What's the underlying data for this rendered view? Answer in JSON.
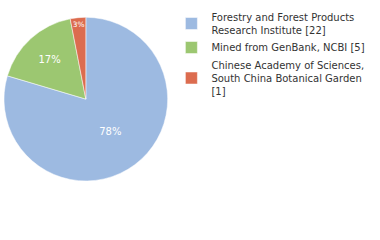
{
  "chart_data": {
    "type": "pie",
    "categories": [
      "Forestry and Forest Products Research Institute [22]",
      "Mined from GenBank, NCBI [5]",
      "Chinese Academy of Sciences, South China Botanical Garden [1]"
    ],
    "values": [
      78,
      17,
      3
    ],
    "value_labels": [
      "78%",
      "17%",
      "3%"
    ],
    "colors": [
      "#9dbae1",
      "#9cc771",
      "#dc6c4f"
    ],
    "data_labels": true,
    "legend": "upper right"
  }
}
